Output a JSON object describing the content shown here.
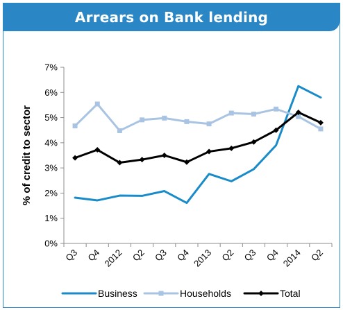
{
  "header": {
    "title": "Arrears on Bank lending"
  },
  "chart_data": {
    "type": "line",
    "ylabel": "% of credit to sector",
    "ylim": [
      0,
      7
    ],
    "yticks": [
      "0%",
      "1%",
      "2%",
      "3%",
      "4%",
      "5%",
      "6%",
      "7%"
    ],
    "categories": [
      "Q3",
      "Q4",
      "2012",
      "Q2",
      "Q3",
      "Q4",
      "2013",
      "Q2",
      "Q3",
      "Q4",
      "2014",
      "Q2"
    ],
    "grid": false,
    "legend": "bottom",
    "series": [
      {
        "name": "Business",
        "color": "#1a8bc9",
        "marker": "none",
        "values": [
          1.82,
          1.71,
          1.9,
          1.89,
          2.08,
          1.61,
          2.76,
          2.47,
          2.95,
          3.9,
          6.25,
          5.8
        ]
      },
      {
        "name": "Households",
        "color": "#a9c4e2",
        "marker": "square",
        "values": [
          4.67,
          5.54,
          4.48,
          4.91,
          4.98,
          4.84,
          4.75,
          5.18,
          5.14,
          5.34,
          5.04,
          4.55
        ]
      },
      {
        "name": "Total",
        "color": "#000000",
        "marker": "diamond",
        "values": [
          3.4,
          3.72,
          3.21,
          3.33,
          3.5,
          3.23,
          3.65,
          3.78,
          4.03,
          4.5,
          5.21,
          4.8
        ]
      }
    ]
  }
}
